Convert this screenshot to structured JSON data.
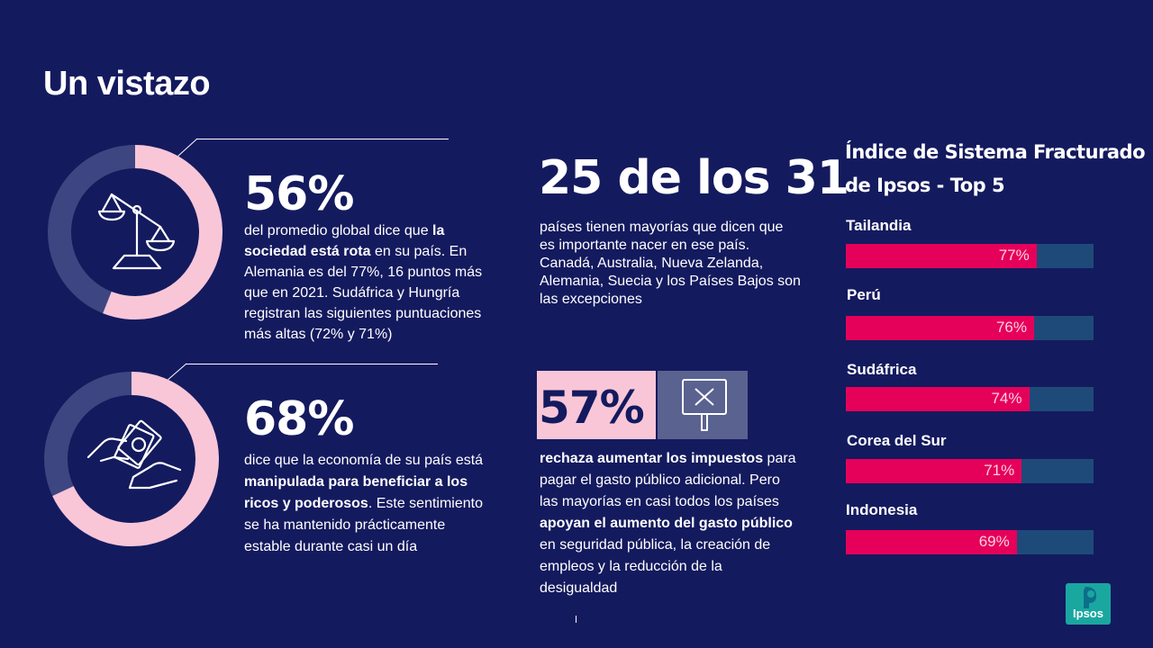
{
  "title": "Un vistazo",
  "stat1": {
    "value": "56%",
    "pre": "del promedio global dice que ",
    "bold": "la sociedad está rota",
    "post": " en su país. En Alemania es del 77%, 16 puntos más que en 2021. Sudáfrica y Hungría registran las siguientes puntuaciones más altas (72% y 71%)",
    "donut_fraction": 0.56,
    "icon": "scales-icon"
  },
  "stat2": {
    "value": "68%",
    "pre": "dice que la economía de su país está ",
    "bold": "manipulada para beneficiar a los ricos y poderosos",
    "post": ". Este sentimiento se ha mantenido prácticamente estable durante casi un día",
    "donut_fraction": 0.68,
    "icon": "money-hands-icon"
  },
  "stat3": {
    "value": "25 de los 31",
    "text": "países tienen mayorías que dicen que es importante nacer en ese país. Canadá, Australia, Nueva Zelanda, Alemania, Suecia y los Países Bajos son las excepciones"
  },
  "stat4": {
    "value": "57%",
    "bold1": "rechaza aumentar los impuestos",
    "mid": " para pagar el gasto público adicional. Pero las mayorías en casi todos los países ",
    "bold2": "apoyan el aumento del gasto público",
    "post": " en seguridad pública, la creación de empleos y la reducción de la desigualdad",
    "icon": "protest-sign-x-icon"
  },
  "chart_data": {
    "type": "bar",
    "title": "Índice de Sistema Fracturado de Ipsos - Top 5",
    "title_line1": "Índice de Sistema Fracturado",
    "title_line2": "de Ipsos - Top 5",
    "categories": [
      "Tailandia",
      "Perú",
      "Sudáfrica",
      "Corea del Sur",
      "Indonesia"
    ],
    "values": [
      77,
      76,
      74,
      71,
      69
    ],
    "labels": [
      "77%",
      "76%",
      "74%",
      "71%",
      "69%"
    ],
    "ylim": [
      0,
      100
    ]
  },
  "logo": {
    "text": "Ipsos"
  },
  "colors": {
    "background": "#141a5e",
    "pink": "#f9c6d8",
    "donut_rest": "#3d4680",
    "bar_fill": "#e5005a",
    "bar_track": "#1e4a7a",
    "logo": "#1aa7a0"
  }
}
